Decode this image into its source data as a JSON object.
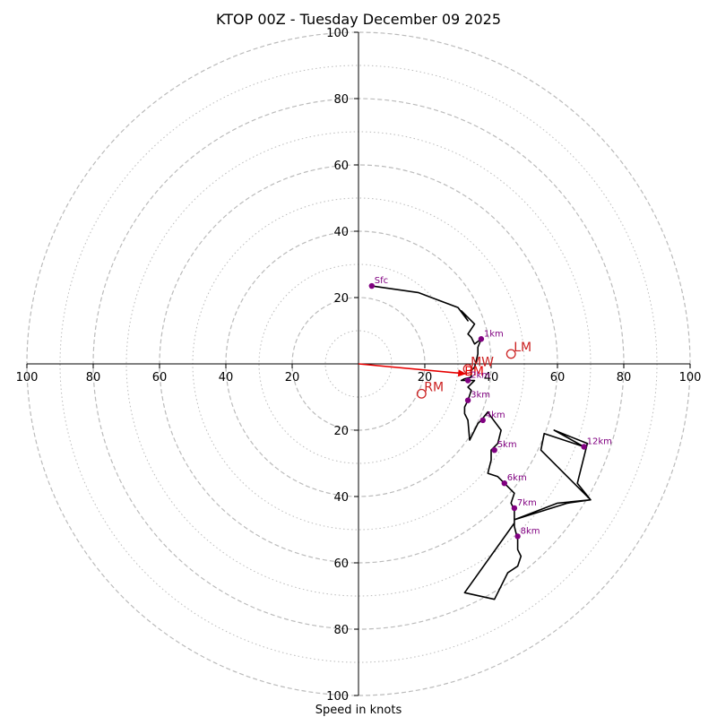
{
  "chart_data": {
    "type": "hodograph",
    "title": "KTOP 00Z - Tuesday December 09 2025",
    "xlabel": "Speed in knots",
    "units": "kt",
    "range": [
      -100,
      100
    ],
    "rings_major": [
      20,
      40,
      60,
      80,
      100
    ],
    "rings_minor": [
      10,
      30,
      50,
      70,
      90
    ],
    "ticks": [
      {
        "v": -100,
        "label": "100"
      },
      {
        "v": -80,
        "label": "80"
      },
      {
        "v": -60,
        "label": "60"
      },
      {
        "v": -40,
        "label": "40"
      },
      {
        "v": -20,
        "label": "20"
      },
      {
        "v": 20,
        "label": "20"
      },
      {
        "v": 40,
        "label": "40"
      },
      {
        "v": 60,
        "label": "60"
      },
      {
        "v": 80,
        "label": "80"
      },
      {
        "v": 100,
        "label": "100"
      }
    ],
    "colors": {
      "trace": "#000000",
      "marker": "#800080",
      "motion": "#cc2222",
      "vector": "#e60000",
      "grid": "#bbbbbb"
    },
    "trace": [
      [
        4,
        23.5
      ],
      [
        18,
        21.5
      ],
      [
        22,
        20
      ],
      [
        30,
        17
      ],
      [
        33,
        13
      ],
      [
        31,
        16
      ],
      [
        35,
        12
      ],
      [
        33,
        9
      ],
      [
        34,
        8
      ],
      [
        35,
        6
      ],
      [
        37,
        7.5
      ],
      [
        36,
        5
      ],
      [
        36,
        3
      ],
      [
        35.5,
        1
      ],
      [
        35,
        -1
      ],
      [
        34,
        -2
      ],
      [
        34,
        -4
      ],
      [
        32,
        -4.5
      ],
      [
        31,
        -5
      ],
      [
        33,
        -5
      ],
      [
        35,
        -5
      ],
      [
        33,
        -7
      ],
      [
        34,
        -8
      ],
      [
        33,
        -11
      ],
      [
        32,
        -13
      ],
      [
        32,
        -15
      ],
      [
        33,
        -17
      ],
      [
        33.5,
        -23
      ],
      [
        36,
        -18
      ],
      [
        37,
        -17
      ],
      [
        39,
        -14.5
      ],
      [
        40,
        -16
      ],
      [
        43,
        -20
      ],
      [
        42,
        -24
      ],
      [
        40,
        -26
      ],
      [
        40,
        -29
      ],
      [
        39,
        -33
      ],
      [
        42,
        -34
      ],
      [
        44,
        -36
      ],
      [
        47,
        -39
      ],
      [
        46,
        -42
      ],
      [
        47,
        -44
      ],
      [
        47,
        -47
      ],
      [
        63,
        -42
      ],
      [
        70,
        -41
      ],
      [
        55,
        -26
      ],
      [
        56,
        -21
      ],
      [
        68,
        -25
      ],
      [
        59,
        -20
      ],
      [
        69,
        -24
      ],
      [
        66,
        -36
      ],
      [
        70,
        -41
      ],
      [
        60,
        -42
      ],
      [
        47,
        -47
      ],
      [
        47,
        -49
      ],
      [
        48,
        -53
      ],
      [
        48,
        -56
      ],
      [
        49,
        -58
      ],
      [
        48,
        -61
      ],
      [
        45,
        -63
      ],
      [
        41,
        -71
      ],
      [
        32,
        -69
      ],
      [
        47,
        -48
      ]
    ],
    "height_markers": [
      {
        "label": "Sfc",
        "u": 4,
        "v": 23.5
      },
      {
        "label": "1km",
        "u": 37,
        "v": 7.5
      },
      {
        "label": "2km",
        "u": 33,
        "v": -5
      },
      {
        "label": "3km",
        "u": 33,
        "v": -11
      },
      {
        "label": "4km",
        "u": 37.5,
        "v": -17
      },
      {
        "label": "5km",
        "u": 41,
        "v": -26
      },
      {
        "label": "6km",
        "u": 44,
        "v": -36
      },
      {
        "label": "7km",
        "u": 47,
        "v": -43.5
      },
      {
        "label": "8km",
        "u": 48,
        "v": -52
      },
      {
        "label": "12km",
        "u": 68,
        "v": -25
      }
    ],
    "storm_motions": [
      {
        "label": "LM",
        "u": 46,
        "v": 3
      },
      {
        "label": "MW",
        "u": 33,
        "v": -1.5
      },
      {
        "label": "RM",
        "u": 19,
        "v": -9
      }
    ],
    "bunkers_vector": {
      "u_end": 32.5,
      "v_end": -3,
      "label": "BM"
    }
  }
}
